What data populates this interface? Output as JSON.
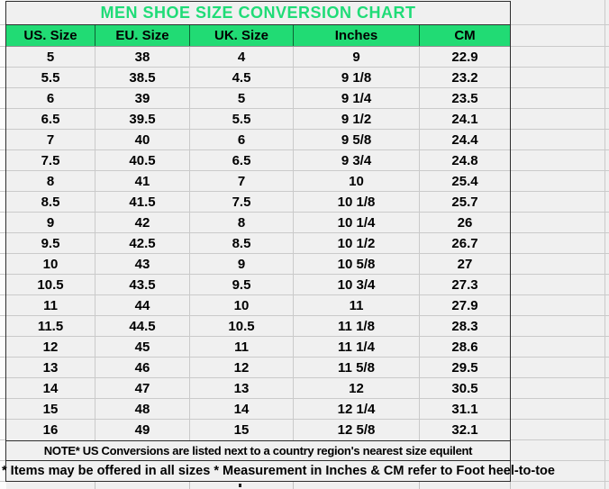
{
  "colors": {
    "header_green": "#21DB74",
    "title_green": "#1FDC77",
    "cell_bg": "#F0F0F0",
    "gridline": "#CACACA",
    "dark_border": "#2D2D2D",
    "text": "#000000"
  },
  "chart_data": {
    "type": "table",
    "title": "MEN SHOE SIZE CONVERSION CHART",
    "columns": [
      "US. Size",
      "EU. Size",
      "UK. Size",
      "Inches",
      "CM"
    ],
    "rows": [
      [
        "5",
        "38",
        "4",
        "9",
        "22.9"
      ],
      [
        "5.5",
        "38.5",
        "4.5",
        "9 1/8",
        "23.2"
      ],
      [
        "6",
        "39",
        "5",
        "9 1/4",
        "23.5"
      ],
      [
        "6.5",
        "39.5",
        "5.5",
        "9 1/2",
        "24.1"
      ],
      [
        "7",
        "40",
        "6",
        "9 5/8",
        "24.4"
      ],
      [
        "7.5",
        "40.5",
        "6.5",
        "9 3/4",
        "24.8"
      ],
      [
        "8",
        "41",
        "7",
        "10",
        "25.4"
      ],
      [
        "8.5",
        "41.5",
        "7.5",
        "10 1/8",
        "25.7"
      ],
      [
        "9",
        "42",
        "8",
        "10 1/4",
        "26"
      ],
      [
        "9.5",
        "42.5",
        "8.5",
        "10 1/2",
        "26.7"
      ],
      [
        "10",
        "43",
        "9",
        "10 5/8",
        "27"
      ],
      [
        "10.5",
        "43.5",
        "9.5",
        "10 3/4",
        "27.3"
      ],
      [
        "11",
        "44",
        "10",
        "11",
        "27.9"
      ],
      [
        "11.5",
        "44.5",
        "10.5",
        "11 1/8",
        "28.3"
      ],
      [
        "12",
        "45",
        "11",
        "11 1/4",
        "28.6"
      ],
      [
        "13",
        "46",
        "12",
        "11 5/8",
        "29.5"
      ],
      [
        "14",
        "47",
        "13",
        "12",
        "30.5"
      ],
      [
        "15",
        "48",
        "14",
        "12 1/4",
        "31.1"
      ],
      [
        "16",
        "49",
        "15",
        "12 5/8",
        "32.1"
      ]
    ],
    "notes": [
      "NOTE* US Conversions are listed next to a country region's nearest size equilent",
      "* Items may be offered in all sizes * Measurement in Inches & CM refer to Foot heel-to-toe"
    ],
    "layout_hints": {
      "grid": true,
      "header_fill": "green",
      "empty_column_right": true
    }
  }
}
